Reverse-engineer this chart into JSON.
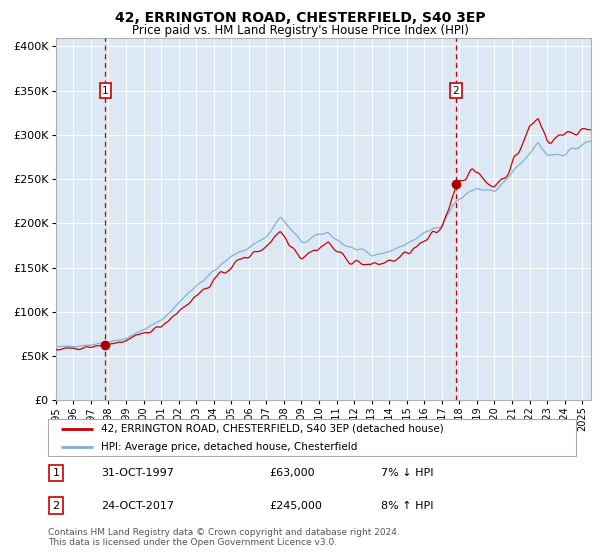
{
  "title": "42, ERRINGTON ROAD, CHESTERFIELD, S40 3EP",
  "subtitle": "Price paid vs. HM Land Registry's House Price Index (HPI)",
  "legend_line1": "42, ERRINGTON ROAD, CHESTERFIELD, S40 3EP (detached house)",
  "legend_line2": "HPI: Average price, detached house, Chesterfield",
  "annotation1_label": "1",
  "annotation1_date": "31-OCT-1997",
  "annotation1_price": "£63,000",
  "annotation1_hpi": "7% ↓ HPI",
  "annotation2_label": "2",
  "annotation2_date": "24-OCT-2017",
  "annotation2_price": "£245,000",
  "annotation2_hpi": "8% ↑ HPI",
  "footer": "Contains HM Land Registry data © Crown copyright and database right 2024.\nThis data is licensed under the Open Government Licence v3.0.",
  "purchase1_year": 1997.83,
  "purchase1_value": 63000,
  "purchase2_year": 2017.81,
  "purchase2_value": 245000,
  "hpi_color": "#7bafd4",
  "price_color": "#cc0000",
  "dashed_color": "#cc0000",
  "background_color": "#dce9f5",
  "marker_color": "#aa0000",
  "ylim": [
    0,
    410000
  ],
  "xlim_start": 1995.0,
  "xlim_end": 2025.5,
  "ytick_values": [
    0,
    50000,
    100000,
    150000,
    200000,
    250000,
    300000,
    350000,
    400000
  ],
  "xtick_years": [
    1995,
    1996,
    1997,
    1998,
    1999,
    2000,
    2001,
    2002,
    2003,
    2004,
    2005,
    2006,
    2007,
    2008,
    2009,
    2010,
    2011,
    2012,
    2013,
    2014,
    2015,
    2016,
    2017,
    2018,
    2019,
    2020,
    2021,
    2022,
    2023,
    2024,
    2025
  ]
}
